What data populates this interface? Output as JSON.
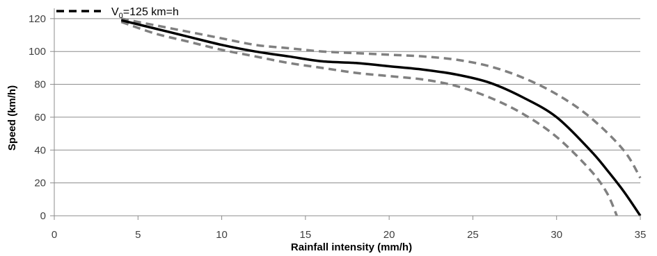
{
  "chart_data": {
    "type": "line",
    "title": "",
    "xlabel": "Rainfall intensity (mm/h)",
    "ylabel": "Speed (km/h)",
    "xlim": [
      0,
      35
    ],
    "ylim": [
      0,
      125
    ],
    "xticks": [
      0,
      5,
      10,
      15,
      20,
      25,
      30,
      35
    ],
    "yticks": [
      0,
      20,
      40,
      60,
      80,
      100,
      120
    ],
    "grid": "horizontal",
    "legend": {
      "placement": "top-left",
      "entries": [
        {
          "prefix": "V",
          "subscript": "0",
          "suffix": "=125 km=h",
          "style": "dashed",
          "color": "#000000"
        }
      ]
    },
    "series": [
      {
        "role": "mean",
        "color": "#000000",
        "dash": "solid",
        "x": [
          4,
          6,
          8,
          10,
          12,
          14,
          16,
          18,
          20,
          22,
          24,
          26,
          28,
          30,
          32,
          33,
          34,
          35
        ],
        "y": [
          119,
          114,
          109,
          104,
          100,
          97,
          94,
          93,
          91,
          89,
          86,
          81,
          72,
          60,
          40,
          28,
          15,
          0
        ]
      },
      {
        "role": "upper-bound",
        "color": "#808080",
        "dash": "dashed",
        "x": [
          4,
          6,
          8,
          10,
          12,
          14,
          16,
          18,
          20,
          22,
          24,
          26,
          28,
          30,
          32,
          34,
          35
        ],
        "y": [
          120,
          116,
          112,
          108,
          104,
          102,
          100,
          99,
          98,
          97,
          95,
          91,
          84,
          74,
          60,
          40,
          23
        ]
      },
      {
        "role": "lower-bound",
        "color": "#808080",
        "dash": "dashed",
        "x": [
          4,
          6,
          8,
          10,
          12,
          14,
          16,
          18,
          20,
          22,
          24,
          26,
          28,
          30,
          32,
          33,
          33.6
        ],
        "y": [
          118,
          111,
          106,
          101,
          97,
          93,
          90,
          87,
          85,
          83,
          79,
          72,
          62,
          48,
          28,
          14,
          0
        ]
      }
    ]
  }
}
